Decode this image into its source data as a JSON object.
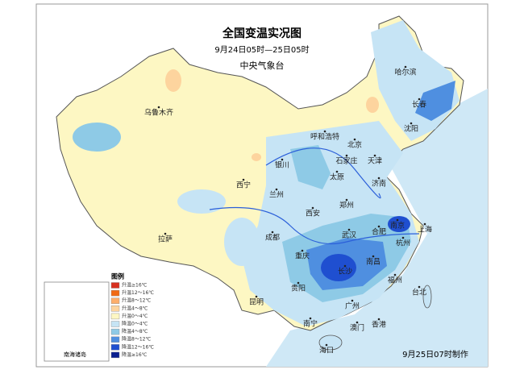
{
  "header": {
    "title": "全国变温实况图",
    "subtitle": "9月24日05时—25日05时",
    "agency": "中央气象台"
  },
  "legend": {
    "title": "图例",
    "items": [
      {
        "label": "升温≥16℃",
        "color": "#d7301f"
      },
      {
        "label": "升温12～16℃",
        "color": "#f16913"
      },
      {
        "label": "升温8～12℃",
        "color": "#fdae6b"
      },
      {
        "label": "升温4～8℃",
        "color": "#fdd49e"
      },
      {
        "label": "升温0～4℃",
        "color": "#fdf7c3"
      },
      {
        "label": "降温0～4℃",
        "color": "#c6e4f5"
      },
      {
        "label": "降温4～8℃",
        "color": "#8ecae6"
      },
      {
        "label": "降温8～12℃",
        "color": "#4f8fe0"
      },
      {
        "label": "降温12～16℃",
        "color": "#1f4fd0"
      },
      {
        "label": "降温≥16℃",
        "color": "#0a1f8f"
      }
    ]
  },
  "inset_label": "南海诸岛",
  "cities": [
    "乌鲁木齐",
    "哈尔滨",
    "长春",
    "沈阳",
    "呼和浩特",
    "北京",
    "天津",
    "石家庄",
    "太原",
    "济南",
    "银川",
    "西宁",
    "兰州",
    "郑州",
    "西安",
    "合肥",
    "南京",
    "上海",
    "杭州",
    "武汉",
    "成都",
    "重庆",
    "长沙",
    "南昌",
    "福州",
    "贵阳",
    "昆明",
    "台北",
    "南宁",
    "广州",
    "澳门",
    "香港",
    "海口",
    "拉萨"
  ],
  "footer": "9月25日07时制作"
}
